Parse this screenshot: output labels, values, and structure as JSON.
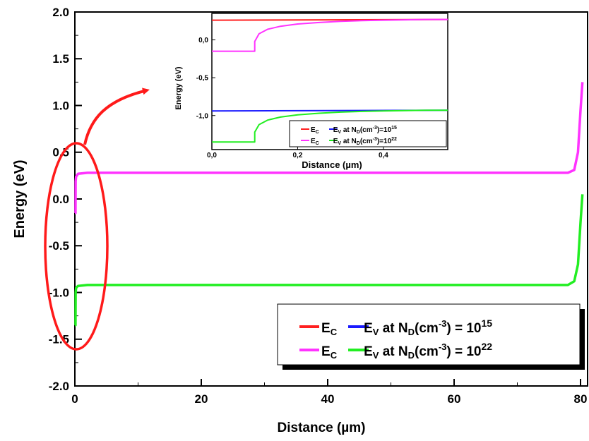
{
  "colors": {
    "ec_low": "#ff2020",
    "ev_low": "#1a1aff",
    "ec_high": "#ff33ff",
    "ev_high": "#22ee22",
    "annotation": "#ff1a1a",
    "axis": "#000000"
  },
  "chart_data": [
    {
      "type": "line",
      "xlabel": "Distance (µm)",
      "ylabel": "Energy (eV)",
      "xlim": [
        0,
        80
      ],
      "ylim": [
        -2.0,
        2.0
      ],
      "xticks": [
        "0",
        "20",
        "40",
        "60",
        "80"
      ],
      "yticks": [
        "2.0",
        "1.5",
        "1.0",
        "0.5",
        "0.0",
        "-0.5",
        "-1.0",
        "-1.5",
        "-2.0"
      ],
      "grid": false,
      "legend_position": "bottom-right",
      "legend": [
        {
          "prefix": "E",
          "prefix_sub": "C",
          "label": "E",
          "label_sub": "V",
          "text_mid": " at N",
          "text_mid_sub": "D",
          "unit": "(cm",
          "unit_sup": "-3",
          "eq": ") = 10",
          "exp": "15"
        },
        {
          "prefix": "E",
          "prefix_sub": "C",
          "label": "E",
          "label_sub": "V",
          "text_mid": " at N",
          "text_mid_sub": "D",
          "unit": "(cm",
          "unit_sup": "-3",
          "eq": ") = 10",
          "exp": "22"
        }
      ],
      "series": [
        {
          "key": "ec_high",
          "x": [
            0.0,
            0.05,
            0.08,
            0.1,
            0.12,
            0.2,
            0.5,
            2,
            10,
            40,
            70,
            78,
            79,
            79.6,
            80.0,
            80.3
          ],
          "y": [
            -0.15,
            -0.15,
            -0.15,
            -0.15,
            0.19,
            0.24,
            0.27,
            0.28,
            0.28,
            0.28,
            0.28,
            0.28,
            0.31,
            0.5,
            0.95,
            1.25
          ]
        },
        {
          "key": "ev_high",
          "x": [
            0.0,
            0.05,
            0.08,
            0.1,
            0.12,
            0.2,
            0.5,
            2,
            10,
            40,
            70,
            78,
            79,
            79.6,
            80.0,
            80.3
          ],
          "y": [
            -1.35,
            -1.35,
            -1.35,
            -1.35,
            -1.0,
            -0.95,
            -0.93,
            -0.92,
            -0.92,
            -0.92,
            -0.92,
            -0.92,
            -0.88,
            -0.7,
            -0.25,
            0.05
          ]
        }
      ]
    },
    {
      "type": "line",
      "title": "",
      "xlabel": "Distance (µm)",
      "ylabel": "Energy (eV)",
      "xlim": [
        0,
        0.55
      ],
      "ylim": [
        -1.45,
        0.35
      ],
      "xticks": [
        "0,0",
        "0,2",
        "0,4"
      ],
      "yticks": [
        "0,0",
        "-0,5",
        "-1,0"
      ],
      "legend": [
        "E",
        "C",
        "E",
        "V",
        " at N",
        "D",
        "(cm",
        "-3",
        ")=10",
        "15",
        "22"
      ],
      "series": [
        {
          "key": "ec_low",
          "x": [
            0,
            0.55
          ],
          "y": [
            0.26,
            0.27
          ]
        },
        {
          "key": "ev_low",
          "x": [
            0,
            0.55
          ],
          "y": [
            -0.94,
            -0.93
          ]
        },
        {
          "key": "ec_high",
          "x": [
            0,
            0.1,
            0.1,
            0.11,
            0.13,
            0.16,
            0.2,
            0.25,
            0.3,
            0.35,
            0.4,
            0.45,
            0.5,
            0.55
          ],
          "y": [
            -0.15,
            -0.15,
            -0.02,
            0.08,
            0.14,
            0.18,
            0.21,
            0.23,
            0.245,
            0.255,
            0.26,
            0.265,
            0.27,
            0.27
          ]
        },
        {
          "key": "ev_high",
          "x": [
            0,
            0.1,
            0.1,
            0.11,
            0.13,
            0.16,
            0.2,
            0.25,
            0.3,
            0.35,
            0.4,
            0.45,
            0.5,
            0.55
          ],
          "y": [
            -1.35,
            -1.35,
            -1.22,
            -1.12,
            -1.06,
            -1.02,
            -0.99,
            -0.97,
            -0.955,
            -0.945,
            -0.94,
            -0.935,
            -0.93,
            -0.93
          ]
        }
      ]
    }
  ]
}
